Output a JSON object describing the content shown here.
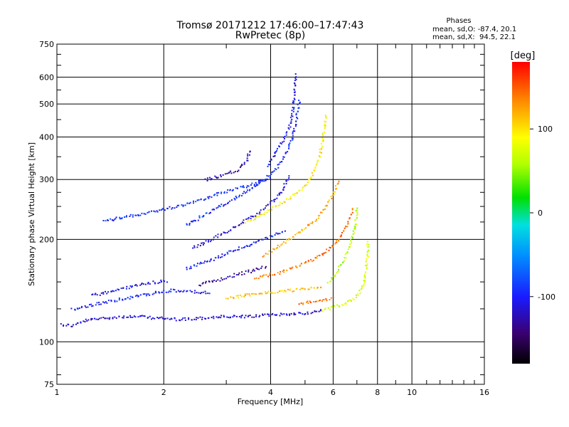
{
  "chart_data": {
    "type": "scatter",
    "title": "Tromsø 20171212 17:46:00–17:47:43",
    "subtitle": "RwPretec (8p)",
    "xlabel": "Frequency [MHz]",
    "ylabel": "Stationary phase Virtual Height [km]",
    "x_scale": "log",
    "y_scale": "log",
    "xlim": [
      1,
      16
    ],
    "ylim": [
      75,
      750
    ],
    "x_ticks": [
      1,
      2,
      4,
      6,
      8,
      10,
      16
    ],
    "x_tick_labels": [
      "1",
      "2",
      "4",
      "6",
      "8",
      "10",
      "16"
    ],
    "y_ticks": [
      75,
      100,
      200,
      300,
      400,
      500,
      600,
      750
    ],
    "y_tick_labels": [
      "75",
      "100",
      "200",
      "300",
      "400",
      "500",
      "600",
      "750"
    ],
    "grid": true,
    "phase_box": {
      "title": "Phases",
      "line_o": "mean, sd,O: -87.4, 20.1",
      "line_x": "mean, sd,X:  94.5, 22.1"
    },
    "colorbar": {
      "label": "[deg]",
      "range": [
        -180,
        180
      ],
      "ticks": [
        100,
        0,
        -100
      ],
      "tick_labels": [
        "100",
        "0",
        "-100"
      ]
    },
    "traces": [
      {
        "name": "",
        "phase": -115,
        "points": [
          [
            1.02,
            113
          ],
          [
            1.1,
            112
          ],
          [
            1.2,
            116
          ],
          [
            1.35,
            118
          ],
          [
            1.5,
            119
          ],
          [
            1.7,
            119
          ],
          [
            1.9,
            118
          ],
          [
            2.1,
            117
          ],
          [
            2.3,
            117
          ],
          [
            2.6,
            118
          ],
          [
            2.9,
            119
          ],
          [
            3.3,
            119
          ],
          [
            3.8,
            120
          ],
          [
            4.3,
            121
          ],
          [
            5.0,
            122
          ],
          [
            5.6,
            124
          ]
        ]
      },
      {
        "name": "",
        "phase": -100,
        "points": [
          [
            1.1,
            125
          ],
          [
            1.3,
            130
          ],
          [
            1.5,
            134
          ],
          [
            1.7,
            137
          ],
          [
            1.9,
            140
          ],
          [
            2.1,
            142
          ],
          [
            2.4,
            141
          ],
          [
            2.7,
            140
          ]
        ]
      },
      {
        "name": "",
        "phase": -108,
        "points": [
          [
            1.25,
            137
          ],
          [
            1.45,
            142
          ],
          [
            1.65,
            147
          ],
          [
            1.85,
            150
          ],
          [
            2.05,
            152
          ]
        ]
      },
      {
        "name": "",
        "phase": -90,
        "points": [
          [
            1.35,
            228
          ],
          [
            1.5,
            232
          ],
          [
            1.7,
            238
          ],
          [
            1.95,
            245
          ],
          [
            2.2,
            252
          ],
          [
            2.5,
            262
          ],
          [
            2.8,
            272
          ],
          [
            3.2,
            283
          ],
          [
            3.6,
            293
          ],
          [
            4.0,
            305
          ]
        ]
      },
      {
        "name": "",
        "phase": -95,
        "points": [
          [
            2.3,
            220
          ],
          [
            2.5,
            232
          ],
          [
            2.8,
            248
          ],
          [
            3.1,
            262
          ],
          [
            3.4,
            278
          ],
          [
            3.8,
            300
          ],
          [
            4.2,
            330
          ],
          [
            4.4,
            360
          ],
          [
            4.6,
            400
          ],
          [
            4.7,
            450
          ],
          [
            4.8,
            520
          ]
        ]
      },
      {
        "name": "",
        "phase": -112,
        "points": [
          [
            2.4,
            190
          ],
          [
            2.7,
            200
          ],
          [
            3.0,
            212
          ],
          [
            3.3,
            225
          ],
          [
            3.7,
            240
          ],
          [
            4.0,
            258
          ],
          [
            4.3,
            280
          ],
          [
            4.5,
            310
          ]
        ]
      },
      {
        "name": "",
        "phase": -98,
        "points": [
          [
            2.3,
            165
          ],
          [
            2.6,
            172
          ],
          [
            2.9,
            180
          ],
          [
            3.2,
            188
          ],
          [
            3.6,
            196
          ],
          [
            4.0,
            205
          ],
          [
            4.4,
            215
          ]
        ]
      },
      {
        "name": "",
        "phase": -135,
        "points": [
          [
            2.5,
            148
          ],
          [
            2.8,
            152
          ],
          [
            3.1,
            157
          ],
          [
            3.5,
            162
          ],
          [
            3.9,
            168
          ]
        ]
      },
      {
        "name": "",
        "phase": -125,
        "points": [
          [
            2.6,
            300
          ],
          [
            2.9,
            310
          ],
          [
            3.2,
            320
          ],
          [
            3.4,
            340
          ],
          [
            3.5,
            370
          ]
        ]
      },
      {
        "name": "",
        "phase": -105,
        "points": [
          [
            3.9,
            330
          ],
          [
            4.1,
            360
          ],
          [
            4.3,
            390
          ],
          [
            4.5,
            430
          ],
          [
            4.6,
            480
          ],
          [
            4.65,
            560
          ],
          [
            4.7,
            620
          ]
        ]
      },
      {
        "name": "",
        "phase": 95,
        "points": [
          [
            3.4,
            225
          ],
          [
            3.8,
            240
          ],
          [
            4.2,
            255
          ],
          [
            4.6,
            270
          ],
          [
            5.0,
            290
          ],
          [
            5.3,
            320
          ],
          [
            5.5,
            360
          ],
          [
            5.6,
            410
          ],
          [
            5.7,
            470
          ]
        ]
      },
      {
        "name": "",
        "phase": 120,
        "points": [
          [
            3.8,
            180
          ],
          [
            4.3,
            195
          ],
          [
            4.8,
            210
          ],
          [
            5.3,
            228
          ],
          [
            5.7,
            250
          ],
          [
            6.0,
            275
          ],
          [
            6.2,
            300
          ]
        ]
      },
      {
        "name": "",
        "phase": 140,
        "points": [
          [
            3.6,
            155
          ],
          [
            4.2,
            160
          ],
          [
            4.8,
            168
          ],
          [
            5.4,
            178
          ],
          [
            5.9,
            190
          ],
          [
            6.3,
            205
          ],
          [
            6.6,
            225
          ],
          [
            6.8,
            250
          ]
        ]
      },
      {
        "name": "",
        "phase": 110,
        "points": [
          [
            3.0,
            135
          ],
          [
            3.4,
            138
          ],
          [
            3.9,
            140
          ],
          [
            4.5,
            142
          ],
          [
            5.1,
            144
          ],
          [
            5.6,
            146
          ]
        ]
      },
      {
        "name": "",
        "phase": 75,
        "points": [
          [
            5.6,
            125
          ],
          [
            6.0,
            127
          ],
          [
            6.4,
            130
          ],
          [
            6.8,
            134
          ],
          [
            7.1,
            140
          ],
          [
            7.3,
            150
          ],
          [
            7.4,
            165
          ],
          [
            7.45,
            180
          ],
          [
            7.5,
            200
          ]
        ]
      },
      {
        "name": "",
        "phase": 60,
        "points": [
          [
            5.8,
            150
          ],
          [
            6.1,
            160
          ],
          [
            6.4,
            175
          ],
          [
            6.7,
            195
          ],
          [
            6.9,
            220
          ],
          [
            7.0,
            250
          ]
        ]
      },
      {
        "name": "",
        "phase": 145,
        "points": [
          [
            4.8,
            130
          ],
          [
            5.2,
            132
          ],
          [
            5.6,
            133
          ],
          [
            6.0,
            135
          ]
        ]
      }
    ]
  }
}
